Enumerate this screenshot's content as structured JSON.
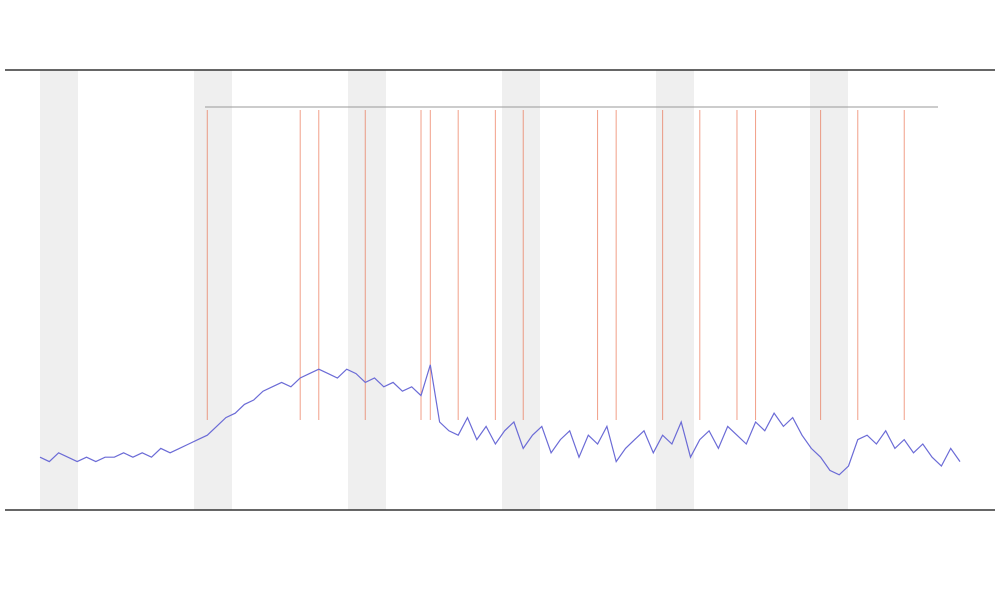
{
  "chart_data": {
    "type": "line",
    "categories": [
      null,
      null,
      null,
      null,
      null,
      null,
      null,
      null,
      null,
      null,
      null,
      null,
      null,
      null,
      null,
      null,
      null,
      null,
      null,
      null,
      null,
      null,
      null,
      null,
      null,
      null,
      null,
      null,
      null,
      null,
      null,
      null,
      null,
      null,
      null,
      null,
      null,
      null,
      null,
      null,
      null,
      null,
      null,
      null,
      null,
      null,
      null,
      null,
      null,
      null,
      null,
      null,
      null,
      null,
      null,
      null,
      null,
      null,
      null,
      null,
      null,
      null,
      null,
      null,
      null,
      null,
      null,
      null,
      null,
      null,
      null,
      null,
      null,
      null,
      null,
      null,
      null,
      null,
      null,
      null,
      null,
      null,
      null,
      null,
      null,
      null,
      null,
      null,
      null,
      null,
      null,
      null,
      null,
      null,
      null,
      null,
      null,
      null,
      null,
      null
    ],
    "series": [
      {
        "color": "#6b6bd6",
        "values": [
          12,
          11,
          13,
          12,
          11,
          12,
          11,
          12,
          12,
          13,
          12,
          13,
          12,
          14,
          13,
          14,
          15,
          16,
          17,
          19,
          21,
          22,
          24,
          25,
          27,
          28,
          29,
          28,
          30,
          31,
          32,
          31,
          30,
          32,
          31,
          29,
          30,
          28,
          29,
          27,
          28,
          26,
          33,
          20,
          18,
          17,
          21,
          16,
          19,
          15,
          18,
          20,
          14,
          17,
          19,
          13,
          16,
          18,
          12,
          17,
          15,
          19,
          11,
          14,
          16,
          18,
          13,
          17,
          15,
          20,
          12,
          16,
          18,
          14,
          19,
          17,
          15,
          20,
          18,
          22,
          19,
          21,
          17,
          14,
          12,
          9,
          8,
          10,
          16,
          17,
          15,
          18,
          14,
          16,
          13,
          15,
          12,
          10,
          14,
          11
        ]
      }
    ],
    "events": {
      "color": "#e8603a",
      "x": [
        18,
        28,
        30,
        35,
        41,
        42,
        45,
        49,
        52,
        60,
        62,
        67,
        71,
        75,
        77,
        84,
        88,
        93
      ]
    },
    "ylim": [
      0,
      100
    ]
  }
}
